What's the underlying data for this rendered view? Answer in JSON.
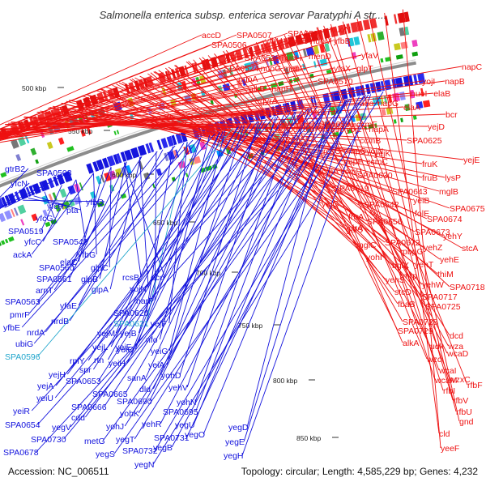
{
  "header": {
    "title": "Salmonella enterica subsp. enterica serovar Paratyphi A str...."
  },
  "footer": {
    "accession": "Accession: NC_006511",
    "summary": "Topology: circular; Length: 4,585,229 bp; Genes: 4,232"
  },
  "colors": {
    "forward": "#ee1111",
    "reverse": "#1111dd",
    "highlight": "#22a6cc",
    "backbone": "#8c8c8c"
  },
  "scale": {
    "ticks": [
      "500 kbp",
      "550 kbp",
      "600 kbp",
      "650 kbp",
      "700 kbp",
      "750 kbp",
      "800 kbp",
      "850 kbp"
    ]
  },
  "genes": {
    "forward": [
      "accD",
      "SPA0507",
      "SPA0535",
      "nuoN",
      "SPA0506",
      "yfbU",
      "nuoE",
      "nuoM",
      "yfbB",
      "yfcF",
      "SPA0528",
      "nuoH",
      "menD",
      "yfaV",
      "napC",
      "SPA0524",
      "nuoG",
      "menF",
      "yfaX",
      "glpT",
      "yojI",
      "napB",
      "nuoA",
      "SPA0570",
      "alkB",
      "napH",
      "nuoI",
      "elaB",
      "gyrA",
      "ada",
      "napG",
      "elaA",
      "pmrD",
      "ais",
      "SPA0574",
      "bcr",
      "yfaW",
      "glpQ",
      "SPA0591",
      "ccmF",
      "SPA0575",
      "SPA0590",
      "yojL",
      "napA",
      "yejD",
      "SPA0584",
      "ccmB",
      "SPA0625",
      "rcsC",
      "ompC",
      "yojN",
      "yejK",
      "napF",
      "ccmC",
      "yejE",
      "ccmA",
      "ccmH",
      "fruK",
      "SPA0630",
      "fruB",
      "lysP",
      "SPA0619",
      "SPA0643",
      "yeiB",
      "mglB",
      "yejG",
      "SPA0642",
      "fruA",
      "folE",
      "SPA0675",
      "galS",
      "SPA0656",
      "SPA0674",
      "cirA",
      "SPA0673",
      "yehY",
      "mglC",
      "SPA0672",
      "pbpG",
      "yehZ",
      "stcA",
      "yohI",
      "bglX",
      "yehT",
      "yehE",
      "thiM",
      "yehS",
      "mrp",
      "yehW",
      "SPA0718",
      "stcD",
      "SPA0717",
      "fbaB",
      "SPA0725",
      "SPA0728",
      "SPA0729",
      "alkA",
      "dcd",
      "udk",
      "wza",
      "wzc",
      "wcaD",
      "wcaI",
      "wzxC",
      "wcaM",
      "rfbF",
      "rfbI",
      "rfbV",
      "rfbU",
      "gnd",
      "cld",
      "yeeF"
    ],
    "reverse": [
      "gtrB2",
      "SPA0503",
      "yfcN",
      "flk",
      "yfcH",
      "pta",
      "yfbQ",
      "yfcG",
      "SPA0519",
      "yfcC",
      "SPA0549",
      "ackA",
      "yfbG",
      "elaC",
      "SPA0560",
      "glpC",
      "SPA0561",
      "glpB",
      "rcsB",
      "arnT",
      "glpA",
      "yojN",
      "eco",
      "SPA0563",
      "yfaE",
      "pmrF",
      "narP",
      "yfbE",
      "nrdB",
      "SPA0620",
      "nrdA",
      "SPA0621",
      "yejF",
      "ubiG",
      "yejM",
      "yejB",
      "SPA0596",
      "nfo",
      "yejL",
      "yejE",
      "yeiO",
      "rplY",
      "rtn",
      "yeiG",
      "yejH",
      "spr",
      "yejA",
      "yeiH",
      "yeiA",
      "yeiU",
      "SPA0653",
      "sanA",
      "yohD",
      "SPA0665",
      "dld",
      "yehV",
      "yeiR",
      "SPA0666",
      "SPA0690",
      "yohN",
      "SPA0654",
      "cdd",
      "yohK",
      "SPA0695",
      "yegV",
      "yohJ",
      "yehR",
      "yegU",
      "SPA0730",
      "metG",
      "yegT",
      "SPA0731",
      "yegO",
      "SPA0678",
      "yegS",
      "SPA0732",
      "yegB",
      "yegN",
      "yegD",
      "yegE",
      "yegH"
    ]
  }
}
